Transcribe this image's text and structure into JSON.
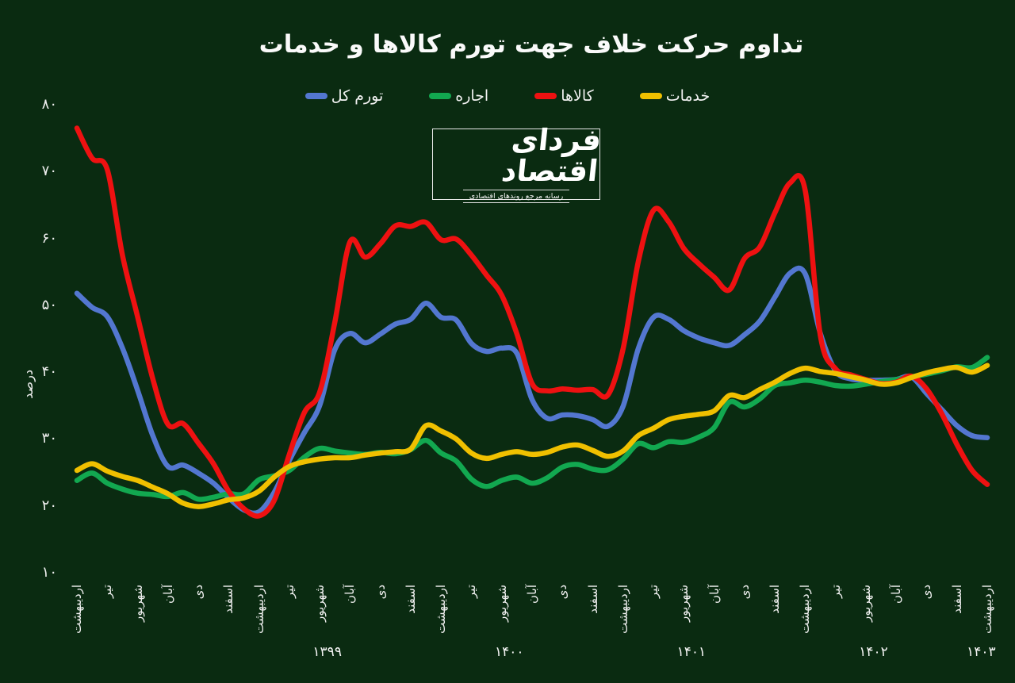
{
  "title": "تداوم حرکت خلاف جهت تورم کالاها و خدمات",
  "logo": {
    "name": "فردای اقتصاد",
    "tagline": "رسانه مرجع روندهای اقتصادی"
  },
  "colors": {
    "background": "#0a2b11",
    "text": "#f5f5f5",
    "total_inflation": "#5377d0",
    "rent": "#12a850",
    "goods": "#ee1111",
    "services": "#f0c000"
  },
  "legend": {
    "items": [
      {
        "label": "تورم کل",
        "color": "#5377d0"
      },
      {
        "label": "اجاره",
        "color": "#12a850"
      },
      {
        "label": "کالاها",
        "color": "#ee1111"
      },
      {
        "label": "خدمات",
        "color": "#f0c000"
      }
    ]
  },
  "chart_data": {
    "type": "line",
    "title": "تداوم حرکت خلاف جهت تورم کالاها و خدمات",
    "xlabel": "",
    "ylabel": "درصد",
    "ylim": [
      10,
      80
    ],
    "grid": false,
    "legend_position": "top",
    "x_start_month": "اردیبهشت ۱۳۹۸",
    "x_end_month": "اردیبهشت ۱۴۰۳",
    "months_per_point": 1,
    "y_ticks": [
      {
        "value": 80,
        "label": "۸۰"
      },
      {
        "value": 70,
        "label": "۷۰"
      },
      {
        "value": 60,
        "label": "۶۰"
      },
      {
        "value": 50,
        "label": "۵۰"
      },
      {
        "value": 40,
        "label": "۴۰"
      },
      {
        "value": 30,
        "label": "۳۰"
      },
      {
        "value": 20,
        "label": "۲۰"
      },
      {
        "value": 10,
        "label": "۱۰"
      }
    ],
    "x_tick_labels": [
      "اردیبهشت",
      "تیر",
      "شهریور",
      "آبان",
      "دی",
      "اسفند",
      "اردیبهشت",
      "تیر",
      "شهریور",
      "آبان",
      "دی",
      "اسفند",
      "اردیبهشت",
      "تیر",
      "شهریور",
      "آبان",
      "دی",
      "اسفند",
      "اردیبهشت",
      "تیر",
      "شهریور",
      "آبان",
      "دی",
      "اسفند",
      "اردیبهشت",
      "تیر",
      "شهریور",
      "آبان",
      "دی",
      "اسفند",
      "اردیبهشت"
    ],
    "year_labels": [
      {
        "label": "۱۳۹۹",
        "month_index": 16.5
      },
      {
        "label": "۱۴۰۰",
        "month_index": 28.5
      },
      {
        "label": "۱۴۰۱",
        "month_index": 40.5
      },
      {
        "label": "۱۴۰۲",
        "month_index": 52.5
      },
      {
        "label": "۱۴۰۳",
        "month_index": 59.6
      }
    ],
    "series": [
      {
        "name": "تورم کل",
        "key": "total-inflation",
        "color": "#5377d0",
        "values": [
          51.8,
          49.7,
          48.3,
          43.6,
          37.3,
          30.5,
          25.9,
          26.1,
          24.9,
          23.4,
          21.2,
          19.4,
          19.1,
          22,
          26.8,
          31,
          35,
          43.4,
          45.8,
          44.4,
          45.7,
          47.2,
          47.9,
          50.3,
          48.2,
          47.8,
          44.3,
          43.1,
          43.6,
          42.8,
          35.9,
          33.1,
          33.6,
          33.5,
          32.9,
          31.9,
          34.9,
          43.5,
          48.2,
          47.9,
          46.2,
          45.1,
          44.4,
          44,
          45.6,
          47.6,
          51.2,
          54.8,
          54.7,
          45.8,
          40.2,
          39,
          38.8,
          38.8,
          38.9,
          39.3,
          36.8,
          34.4,
          32,
          30.5,
          30.2
        ]
      },
      {
        "name": "اجاره",
        "key": "rent",
        "color": "#12a850",
        "values": [
          23.8,
          24.9,
          23.4,
          22.5,
          21.9,
          21.7,
          21.4,
          22,
          21,
          21.3,
          21.8,
          21.8,
          23.9,
          24.5,
          25.3,
          27.3,
          28.6,
          28.2,
          27.9,
          27.7,
          28,
          27.8,
          28.4,
          29.8,
          27.9,
          26.7,
          24,
          22.9,
          23.8,
          24.3,
          23.4,
          24.2,
          25.8,
          26.2,
          25.5,
          25.4,
          27,
          29.3,
          28.7,
          29.6,
          29.5,
          30.3,
          31.7,
          35.5,
          34.8,
          36,
          38,
          38.4,
          38.8,
          38.5,
          38,
          37.9,
          38.2,
          38.6,
          38.9,
          39.3,
          39.7,
          40.2,
          40.8,
          40.7,
          42.2
        ]
      },
      {
        "name": "کالاها",
        "key": "goods",
        "color": "#ee1111",
        "values": [
          76.5,
          72,
          70.3,
          57.5,
          48.3,
          39,
          32.2,
          32.3,
          29.4,
          26.3,
          22.2,
          19.6,
          18.5,
          20.8,
          27.7,
          34,
          37,
          47.5,
          59.5,
          57.2,
          59.2,
          61.9,
          61.8,
          62.4,
          59.8,
          59.9,
          57.5,
          54.5,
          51.5,
          45.7,
          38.3,
          37.2,
          37.5,
          37.3,
          37.4,
          36.6,
          43.5,
          56.5,
          64.2,
          62.5,
          58.5,
          56.2,
          54.2,
          52.3,
          57,
          58.7,
          63.8,
          68.3,
          67.2,
          45.5,
          40.5,
          39.6,
          38.9,
          38.3,
          38.5,
          39.4,
          37.5,
          33.8,
          29.2,
          25.3,
          23.2
        ]
      },
      {
        "name": "خدمات",
        "key": "services",
        "color": "#f0c000",
        "values": [
          25.3,
          26.3,
          25.2,
          24.4,
          23.8,
          22.8,
          21.8,
          20.4,
          19.9,
          20.3,
          20.9,
          21.2,
          22.2,
          24.3,
          25.9,
          26.6,
          27,
          27.2,
          27.2,
          27.6,
          27.9,
          28.1,
          28.5,
          32,
          31.2,
          30,
          27.9,
          27.1,
          27.7,
          28.1,
          27.7,
          28,
          28.8,
          29.1,
          28.3,
          27.4,
          28.2,
          30.5,
          31.6,
          32.9,
          33.4,
          33.7,
          34.2,
          36.5,
          36.2,
          37.4,
          38.5,
          39.8,
          40.6,
          40.1,
          39.8,
          39.3,
          38.8,
          38.2,
          38.4,
          39.2,
          39.9,
          40.4,
          40.7,
          40,
          41
        ]
      }
    ]
  }
}
